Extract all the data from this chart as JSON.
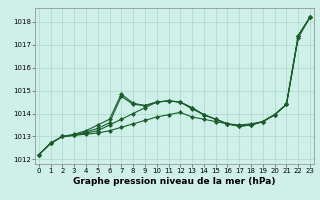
{
  "background_color": "#cff0e8",
  "grid_color": "#aad8cc",
  "line_color": "#1a5c2a",
  "x_values": [
    0,
    1,
    2,
    3,
    4,
    5,
    6,
    7,
    8,
    9,
    10,
    11,
    12,
    13,
    14,
    15,
    16,
    17,
    18,
    19,
    20,
    21,
    22,
    23
  ],
  "series": [
    [
      1012.2,
      1012.7,
      1013.0,
      1013.05,
      1013.1,
      1013.15,
      1013.25,
      1013.4,
      1013.55,
      1013.7,
      1013.85,
      1013.95,
      1014.05,
      1013.85,
      1013.75,
      1013.65,
      1013.55,
      1013.5,
      1013.55,
      1013.65,
      1013.95,
      1014.4,
      1017.3,
      1018.2
    ],
    [
      1012.2,
      1012.7,
      1013.0,
      1013.05,
      1013.15,
      1013.25,
      1013.5,
      1013.75,
      1014.0,
      1014.25,
      1014.5,
      1014.55,
      1014.5,
      1014.25,
      1013.95,
      1013.75,
      1013.55,
      1013.45,
      1013.5,
      1013.65,
      1013.95,
      1014.4,
      1017.4,
      1018.2
    ],
    [
      1012.2,
      1012.7,
      1013.0,
      1013.05,
      1013.2,
      1013.35,
      1013.6,
      1014.75,
      1014.4,
      1014.35,
      1014.5,
      1014.55,
      1014.5,
      1014.25,
      1013.95,
      1013.75,
      1013.55,
      1013.45,
      1013.5,
      1013.65,
      1013.95,
      1014.4,
      1017.4,
      1018.2
    ],
    [
      1012.2,
      1012.7,
      1013.0,
      1013.1,
      1013.25,
      1013.5,
      1013.75,
      1014.85,
      1014.45,
      1014.35,
      1014.5,
      1014.55,
      1014.5,
      1014.2,
      1013.95,
      1013.75,
      1013.55,
      1013.45,
      1013.5,
      1013.65,
      1013.95,
      1014.4,
      1017.4,
      1018.2
    ]
  ],
  "xlabel": "Graphe pression niveau de la mer (hPa)",
  "ylim": [
    1011.8,
    1018.6
  ],
  "xlim": [
    -0.3,
    23.3
  ],
  "yticks": [
    1012,
    1013,
    1014,
    1015,
    1016,
    1017,
    1018
  ],
  "xticks": [
    0,
    1,
    2,
    3,
    4,
    5,
    6,
    7,
    8,
    9,
    10,
    11,
    12,
    13,
    14,
    15,
    16,
    17,
    18,
    19,
    20,
    21,
    22,
    23
  ],
  "tick_fontsize": 5.0,
  "xlabel_fontsize": 6.5,
  "marker": "D",
  "markersize": 2.0,
  "linewidth": 0.8
}
